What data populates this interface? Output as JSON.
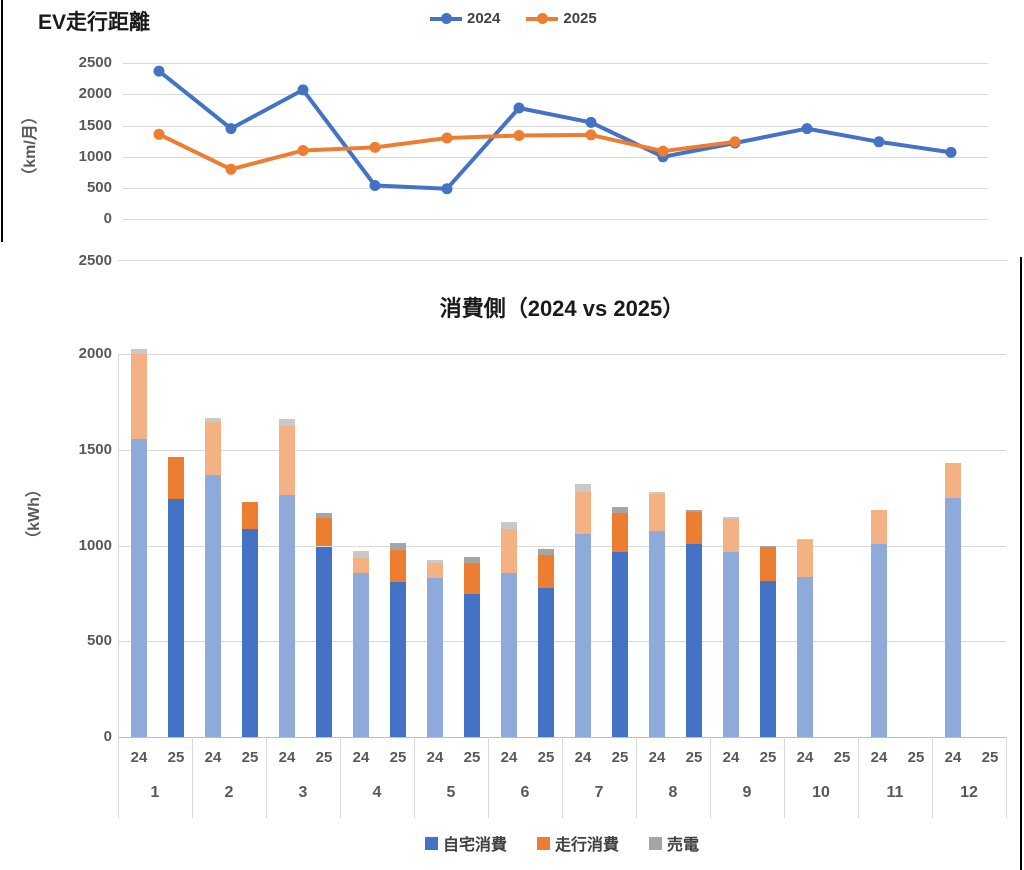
{
  "between_charts": {
    "stray_tick_label": "2500"
  },
  "chart_data": [
    {
      "type": "line",
      "title": "EV走行距離",
      "ylabel": "（km/月）",
      "x": [
        1,
        2,
        3,
        4,
        5,
        6,
        7,
        8,
        9,
        10,
        11,
        12
      ],
      "ylim": [
        0,
        2500
      ],
      "yticks": [
        0,
        500,
        1000,
        1500,
        2000,
        2500
      ],
      "grid": true,
      "legend_position": "top-center",
      "series": [
        {
          "name": "2024",
          "color": "#4472C4",
          "values": [
            2370,
            1450,
            2070,
            540,
            490,
            1780,
            1550,
            1000,
            1220,
            1450,
            1240,
            1070
          ]
        },
        {
          "name": "2025",
          "color": "#ED7D31",
          "values": [
            1360,
            800,
            1100,
            1150,
            1300,
            1340,
            1350,
            1090,
            1240,
            null,
            null,
            null
          ]
        }
      ]
    },
    {
      "type": "bar",
      "subtype": "stacked",
      "title": "消費側（2024 vs 2025）",
      "ylabel": "（kWh）",
      "ylim": [
        0,
        2000
      ],
      "yticks": [
        0,
        500,
        1000,
        1500,
        2000
      ],
      "grid": true,
      "legend_position": "bottom-center",
      "months": [
        "1",
        "2",
        "3",
        "4",
        "5",
        "6",
        "7",
        "8",
        "9",
        "10",
        "11",
        "12"
      ],
      "group_labels": [
        "24",
        "25"
      ],
      "series": [
        {
          "name": "自宅消費",
          "color_2025": "#4472C4",
          "color_2024": "#8EAADB"
        },
        {
          "name": "走行消費",
          "color_2025": "#ED7D31",
          "color_2024": "#F4B183"
        },
        {
          "name": "売電",
          "color_2025": "#A5A5A5",
          "color_2024": "#C9C9C9"
        }
      ],
      "values_2024": [
        [
          1555,
          445,
          25
        ],
        [
          1370,
          275,
          20
        ],
        [
          1265,
          360,
          35
        ],
        [
          855,
          80,
          35
        ],
        [
          830,
          80,
          15
        ],
        [
          855,
          230,
          40
        ],
        [
          1060,
          220,
          40
        ],
        [
          1075,
          195,
          10
        ],
        [
          965,
          175,
          10
        ],
        [
          835,
          195,
          5
        ],
        [
          1010,
          175,
          0
        ],
        [
          1250,
          180,
          0
        ]
      ],
      "values_2025": [
        [
          1245,
          215,
          0
        ],
        [
          1085,
          140,
          0
        ],
        [
          995,
          150,
          25
        ],
        [
          810,
          165,
          40
        ],
        [
          745,
          165,
          30
        ],
        [
          780,
          170,
          30
        ],
        [
          965,
          205,
          30
        ],
        [
          1010,
          165,
          10
        ],
        [
          815,
          175,
          10
        ],
        null,
        null,
        null
      ]
    }
  ]
}
